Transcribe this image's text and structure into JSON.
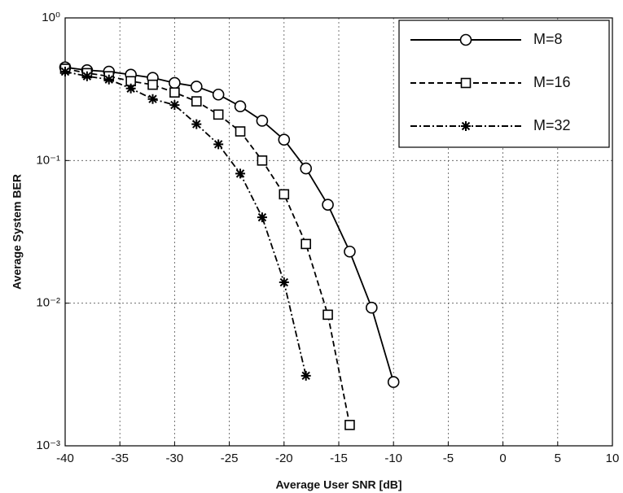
{
  "chart_data": {
    "type": "line",
    "x_label": "Average User SNR [dB]",
    "y_label": "Average System BER",
    "x": [
      -40,
      -38,
      -36,
      -34,
      -32,
      -30,
      -28,
      -26,
      -24,
      -22,
      -20,
      -18,
      -16,
      -14,
      -12,
      -10
    ],
    "series": [
      {
        "name": "M=8",
        "color": "#000000",
        "marker": "circle",
        "dash": "solid",
        "values": [
          0.45,
          0.43,
          0.42,
          0.4,
          0.38,
          0.35,
          0.33,
          0.29,
          0.24,
          0.19,
          0.14,
          0.088,
          0.049,
          0.023,
          0.0093,
          0.0028
        ]
      },
      {
        "name": "M=16",
        "color": "#000000",
        "marker": "square",
        "dash": "dashed",
        "values": [
          0.44,
          0.41,
          0.39,
          0.36,
          0.34,
          0.3,
          0.26,
          0.21,
          0.16,
          0.1,
          0.058,
          0.026,
          0.0083,
          0.0014,
          null,
          null
        ]
      },
      {
        "name": "M=32",
        "color": "#000000",
        "marker": "star",
        "dash": "dashdot",
        "values": [
          0.42,
          0.39,
          0.37,
          0.32,
          0.27,
          0.245,
          0.18,
          0.13,
          0.081,
          0.04,
          0.014,
          0.0031,
          null,
          null,
          null,
          null
        ]
      }
    ],
    "xlim": [
      -40,
      10
    ],
    "xticks": [
      -40,
      -35,
      -30,
      -25,
      -20,
      -15,
      -10,
      -5,
      0,
      5,
      10
    ],
    "ylim": [
      0.001,
      1
    ],
    "y_scale": "log",
    "yticks": [
      {
        "value": 0.001,
        "label": "10⁻³"
      },
      {
        "value": 0.01,
        "label": "10⁻²"
      },
      {
        "value": 0.1,
        "label": "10⁻¹"
      },
      {
        "value": 1,
        "label": "10⁰"
      }
    ],
    "grid": true,
    "legend_position": "upper-right"
  }
}
